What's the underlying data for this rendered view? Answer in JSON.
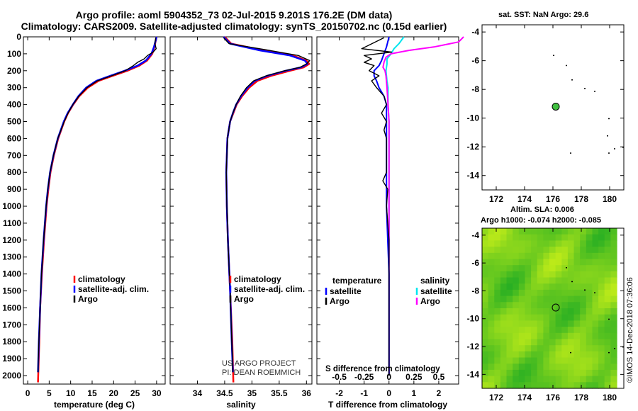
{
  "title": {
    "line1": "Argo profile: aoml 5904352_73 02-Jul-2015 9.201S 176.2E (DM data)",
    "line2": "Climatology: CARS2009. Satellite-adjusted climatology: synTS_20150702.nc (0.15d earlier)"
  },
  "depth_ticks": [
    "0",
    "100",
    "200",
    "300",
    "400",
    "500",
    "600",
    "700",
    "800",
    "900",
    "1000",
    "1100",
    "1200",
    "1300",
    "1400",
    "1500",
    "1600",
    "1700",
    "1800",
    "1900",
    "2000"
  ],
  "colors": {
    "climatology": "#ff0000",
    "satellite": "#0000ff",
    "argo": "#000000",
    "t_sat": "#0000ff",
    "s_sat": "#00e5ee",
    "s_argo": "#ff00ff",
    "land": "#000000",
    "map_point": "#40c040"
  },
  "chart_data": [
    {
      "type": "line",
      "name": "temperature",
      "xlabel": "temperature (deg C)",
      "xlim": [
        -1,
        32
      ],
      "xticks": [
        "0",
        "5",
        "10",
        "15",
        "20",
        "25",
        "30"
      ],
      "ylim": [
        0,
        2050
      ],
      "legend": {
        "climatology": "climatology",
        "satellite": "satellite-adj. clim.",
        "argo": "Argo"
      },
      "series": [
        {
          "name": "climatology",
          "depth": [
            0,
            60,
            100,
            140,
            170,
            200,
            230,
            260,
            300,
            350,
            400,
            450,
            500,
            600,
            700,
            800,
            900,
            1000,
            1200,
            1400,
            1600,
            1800,
            2040
          ],
          "values": [
            30.0,
            29.5,
            29.0,
            27.8,
            26.0,
            23.2,
            19.8,
            16.5,
            14.0,
            12.0,
            10.6,
            9.4,
            8.5,
            7.1,
            6.1,
            5.3,
            4.8,
            4.4,
            3.8,
            3.3,
            2.9,
            2.7,
            2.4
          ]
        },
        {
          "name": "satellite-adj. clim.",
          "depth": [
            0,
            60,
            100,
            140,
            170,
            200,
            230,
            260,
            300,
            350,
            400,
            450,
            500,
            600,
            700,
            800,
            900,
            1000,
            1200,
            1400,
            1600,
            1800,
            1980
          ],
          "values": [
            30.0,
            29.4,
            28.8,
            27.5,
            25.6,
            22.6,
            19.2,
            16.0,
            13.6,
            11.8,
            10.5,
            9.3,
            8.4,
            7.0,
            6.0,
            5.2,
            4.7,
            4.3,
            3.7,
            3.2,
            2.9,
            2.6,
            2.4
          ]
        },
        {
          "name": "Argo",
          "depth": [
            5,
            40,
            70,
            90,
            110,
            130,
            150,
            170,
            200,
            230,
            260,
            300,
            350,
            400,
            450,
            500,
            600,
            700,
            800,
            900,
            1000,
            1200,
            1400,
            1600,
            1800,
            1980
          ],
          "values": [
            29.8,
            29.6,
            29.9,
            29.2,
            27.9,
            27.1,
            25.6,
            24.6,
            22.7,
            19.5,
            16.2,
            13.8,
            11.9,
            10.5,
            9.4,
            8.5,
            7.0,
            6.0,
            5.2,
            4.7,
            4.3,
            3.7,
            3.2,
            2.9,
            2.6,
            2.4
          ]
        }
      ]
    },
    {
      "type": "line",
      "name": "salinity",
      "xlabel": "salinity",
      "xlim": [
        33.5,
        36.1
      ],
      "xticks": [
        "34",
        "34.5",
        "35",
        "35.5",
        "36"
      ],
      "ylim": [
        0,
        2050
      ],
      "legend": {
        "climatology": "climatology",
        "satellite": "satellite-adj. clim.",
        "argo": "Argo"
      },
      "series": [
        {
          "name": "climatology",
          "depth": [
            0,
            40,
            80,
            110,
            140,
            160,
            180,
            200,
            230,
            260,
            300,
            350,
            400,
            450,
            500,
            600,
            800,
            1000,
            1200,
            1500,
            1800,
            2040
          ],
          "values": [
            34.5,
            34.62,
            35.2,
            35.75,
            36.0,
            36.05,
            35.95,
            35.7,
            35.35,
            35.1,
            34.95,
            34.82,
            34.72,
            34.66,
            34.6,
            34.55,
            34.53,
            34.54,
            34.56,
            34.6,
            34.64,
            34.66
          ]
        },
        {
          "name": "satellite-adj. clim.",
          "depth": [
            0,
            40,
            80,
            110,
            140,
            160,
            180,
            200,
            230,
            260,
            300,
            350,
            400,
            450,
            500,
            600,
            800,
            1000,
            1200,
            1500,
            1800,
            1980
          ],
          "values": [
            34.48,
            34.6,
            35.15,
            35.7,
            35.97,
            36.02,
            35.9,
            35.62,
            35.28,
            35.05,
            34.92,
            34.8,
            34.71,
            34.65,
            34.6,
            34.55,
            34.53,
            34.54,
            34.56,
            34.6,
            34.63,
            34.65
          ]
        },
        {
          "name": "Argo",
          "depth": [
            5,
            40,
            80,
            110,
            140,
            160,
            180,
            200,
            230,
            260,
            300,
            350,
            400,
            450,
            500,
            600,
            800,
            1000,
            1200,
            1500,
            1800,
            1980
          ],
          "values": [
            34.48,
            34.58,
            35.32,
            35.85,
            36.06,
            36.0,
            35.88,
            35.6,
            35.26,
            35.03,
            34.9,
            34.79,
            34.71,
            34.65,
            34.6,
            34.55,
            34.53,
            34.54,
            34.56,
            34.6,
            34.63,
            34.65
          ]
        }
      ]
    },
    {
      "type": "line",
      "name": "difference",
      "xlabel": "T difference from climatology",
      "xlabel2": "S difference from climatology",
      "xlim": [
        -2.9,
        2.8
      ],
      "xticks": [
        "-2",
        "-1",
        "0",
        "1",
        "2"
      ],
      "sticks": [
        "-0.5",
        "-0.25",
        "0",
        "0.25",
        "0.5"
      ],
      "ylim": [
        0,
        2050
      ],
      "legend": {
        "temperature": "temperature",
        "salinity": "salinity",
        "t_sat": "satellite",
        "t_argo": "Argo",
        "s_sat": "satellite",
        "s_argo": "Argo"
      },
      "series": [
        {
          "name": "T satellite",
          "depth": [
            0,
            60,
            100,
            140,
            170,
            200,
            230,
            260,
            300,
            350,
            400,
            450,
            500,
            600,
            800,
            1000,
            1400,
            1800,
            2000
          ],
          "values": [
            0.0,
            -0.1,
            -0.2,
            -0.3,
            -0.4,
            -0.6,
            -0.6,
            -0.5,
            -0.4,
            -0.2,
            -0.1,
            -0.1,
            -0.1,
            -0.1,
            -0.1,
            -0.1,
            0.0,
            0.0,
            0.0
          ]
        },
        {
          "name": "T Argo",
          "depth": [
            5,
            70,
            90,
            110,
            130,
            150,
            170,
            200,
            230,
            260,
            300,
            350,
            400,
            450,
            500,
            550,
            600,
            700,
            800,
            850,
            900,
            1000,
            1200,
            1500,
            1800,
            2000
          ],
          "values": [
            -0.2,
            -1.1,
            0.1,
            -1.0,
            -0.7,
            -1.0,
            -0.6,
            -0.8,
            -0.4,
            -0.7,
            -0.5,
            -0.2,
            -0.1,
            -0.3,
            -0.1,
            -0.2,
            -0.1,
            -0.1,
            -0.1,
            -0.25,
            -0.05,
            -0.1,
            0.0,
            0.0,
            0.0,
            0.0
          ]
        },
        {
          "name": "S satellite",
          "depth": [
            0,
            40,
            70,
            100,
            130,
            160,
            200,
            260,
            300,
            400,
            500,
            700,
            1000,
            1500,
            2000
          ],
          "values": [
            0.15,
            0.1,
            0.05,
            0.02,
            -0.02,
            -0.02,
            -0.03,
            -0.02,
            -0.01,
            -0.01,
            0.0,
            0.0,
            0.0,
            0.0,
            0.0
          ]
        },
        {
          "name": "S Argo",
          "depth": [
            0,
            30,
            60,
            80,
            100,
            120,
            150,
            180,
            200,
            230,
            300,
            400,
            500,
            1000,
            2000
          ],
          "values": [
            0.75,
            0.7,
            0.45,
            0.2,
            0.02,
            -0.03,
            -0.05,
            -0.06,
            -0.04,
            -0.03,
            -0.02,
            -0.01,
            0.0,
            0.0,
            0.0
          ]
        }
      ]
    },
    {
      "type": "scatter",
      "name": "sst-map",
      "title": "sat. SST: NaN Argo: 29.6",
      "xlim": [
        171,
        181
      ],
      "ylim": [
        -15,
        -3.5
      ],
      "xticks": [
        "172",
        "174",
        "176",
        "178",
        "180"
      ],
      "yticks": [
        "-4",
        "-6",
        "-8",
        "-10",
        "-12",
        "-14"
      ],
      "argo_position": [
        176.2,
        -9.2
      ],
      "islands": [
        [
          176.0,
          -5.6
        ],
        [
          176.9,
          -6.3
        ],
        [
          177.3,
          -7.3
        ],
        [
          178.2,
          -7.9
        ],
        [
          178.9,
          -8.1
        ],
        [
          179.9,
          -10.0
        ],
        [
          179.8,
          -11.2
        ],
        [
          177.2,
          -12.4
        ],
        [
          179.9,
          -12.4
        ],
        [
          180.3,
          -12.1
        ],
        [
          180.9,
          -12.0
        ]
      ]
    },
    {
      "type": "heatmap",
      "name": "sla-map",
      "title": "Altim. SLA: 0.006",
      "subtitle": "Argo h1000: -0.074 h2000: -0.085",
      "xlim": [
        171,
        181
      ],
      "ylim": [
        -15,
        -3.5
      ],
      "xticks": [
        "172",
        "174",
        "176",
        "178",
        "180"
      ],
      "yticks": [
        "-4",
        "-6",
        "-8",
        "-10",
        "-12",
        "-14"
      ],
      "argo_position": [
        176.2,
        -9.2
      ],
      "islands": [
        [
          176.9,
          -6.3
        ],
        [
          177.3,
          -7.3
        ],
        [
          178.2,
          -7.9
        ],
        [
          178.9,
          -8.1
        ],
        [
          179.9,
          -10.0
        ],
        [
          177.2,
          -12.4
        ],
        [
          179.9,
          -12.4
        ],
        [
          180.3,
          -12.1
        ],
        [
          180.9,
          -12.0
        ]
      ]
    }
  ],
  "credits": {
    "project": "US ARGO PROJECT",
    "pi": "PI: DEAN ROEMMICH"
  },
  "stamp": "©IMOS 14-Dec-2018 07:36:06"
}
